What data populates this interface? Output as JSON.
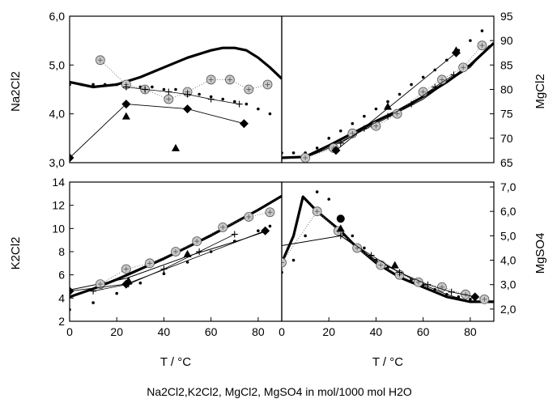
{
  "caption": "Na2Cl2,K2Cl2, MgCl2, MgSO4 in mol/1000 mol H2O",
  "chart_data": [
    {
      "id": "na2cl2",
      "type": "line",
      "ylabel": "Na2Cl2",
      "xlabel": "",
      "xlim": [
        0,
        90
      ],
      "ylim": [
        3.0,
        6.0
      ],
      "xticks": [],
      "yticks": [
        "3,0",
        "4,0",
        "5,0",
        "6,0"
      ],
      "ytick_values": [
        3,
        4,
        5,
        6
      ],
      "series": [
        {
          "kind": "thick",
          "x": [
            0,
            10,
            20,
            30,
            40,
            50,
            60,
            65,
            70,
            75,
            80,
            85,
            90
          ],
          "y": [
            4.65,
            4.55,
            4.6,
            4.75,
            4.95,
            5.15,
            5.3,
            5.35,
            5.35,
            5.3,
            5.15,
            4.95,
            4.72
          ]
        },
        {
          "kind": "dotted",
          "x": [
            0,
            5,
            10,
            15,
            20,
            25,
            30,
            35,
            40,
            45,
            50,
            55,
            60,
            65,
            70,
            75,
            80,
            85
          ],
          "y": [
            4.6,
            4.6,
            4.6,
            4.6,
            4.6,
            4.6,
            4.55,
            4.55,
            4.5,
            4.5,
            4.45,
            4.4,
            4.35,
            4.3,
            4.25,
            4.2,
            4.1,
            4.0
          ]
        },
        {
          "kind": "circle",
          "x": [
            13,
            24,
            32,
            42,
            50,
            60,
            68,
            76,
            84
          ],
          "y": [
            5.1,
            4.6,
            4.5,
            4.3,
            4.45,
            4.7,
            4.7,
            4.5,
            4.6
          ]
        },
        {
          "kind": "plus",
          "x": [
            24,
            32,
            42,
            50,
            60,
            72
          ],
          "y": [
            4.55,
            4.5,
            4.45,
            4.4,
            4.3,
            4.2
          ]
        },
        {
          "kind": "diamond",
          "x": [
            0,
            24,
            50,
            74
          ],
          "y": [
            3.1,
            4.2,
            4.1,
            3.8
          ]
        },
        {
          "kind": "triangle",
          "x": [
            24,
            45
          ],
          "y": [
            3.95,
            3.3
          ]
        }
      ]
    },
    {
      "id": "mgcl2",
      "type": "line",
      "ylabel": "MgCl2",
      "xlabel": "",
      "xlim": [
        0,
        90
      ],
      "ylim": [
        65,
        95
      ],
      "xticks": [],
      "yticks": [
        "65",
        "70",
        "75",
        "80",
        "85",
        "90",
        "95"
      ],
      "ytick_values": [
        65,
        70,
        75,
        80,
        85,
        90,
        95
      ],
      "series": [
        {
          "kind": "thick",
          "x": [
            0,
            10,
            20,
            30,
            40,
            50,
            60,
            70,
            80,
            90
          ],
          "y": [
            66,
            66.2,
            68.5,
            71,
            73.5,
            75.8,
            78.5,
            81.5,
            85,
            89.5
          ]
        },
        {
          "kind": "thin",
          "x": [
            10,
            20,
            30,
            40,
            50,
            60,
            70,
            80,
            88
          ],
          "y": [
            66,
            68,
            70.5,
            73,
            75.5,
            78,
            81.5,
            84.5,
            89
          ]
        },
        {
          "kind": "dotted",
          "x": [
            0,
            5,
            10,
            15,
            20,
            25,
            30,
            35,
            40,
            45,
            50,
            55,
            60,
            65,
            70,
            75,
            80,
            85
          ],
          "y": [
            67,
            67,
            67,
            68,
            70,
            71.5,
            73,
            74.5,
            76,
            77.5,
            79,
            81,
            82.5,
            84,
            86,
            88,
            90,
            92
          ]
        },
        {
          "kind": "circle",
          "x": [
            10,
            22,
            30,
            40,
            49,
            60,
            68,
            77,
            85
          ],
          "y": [
            66,
            68,
            71,
            72.5,
            75,
            79.5,
            82,
            84.5,
            89
          ]
        },
        {
          "kind": "plus",
          "x": [
            25,
            35,
            45,
            55,
            65,
            73
          ],
          "y": [
            69,
            72,
            74.5,
            77,
            80.5,
            83
          ]
        },
        {
          "kind": "diamond",
          "x": [
            23,
            74
          ],
          "y": [
            67.5,
            87.5
          ]
        },
        {
          "kind": "triangle",
          "x": [
            45,
            74
          ],
          "y": [
            76.5,
            88
          ]
        }
      ]
    },
    {
      "id": "k2cl2",
      "type": "line",
      "ylabel": "K2Cl2",
      "xlabel": "T / °C",
      "xlim": [
        0,
        90
      ],
      "ylim": [
        2,
        14
      ],
      "xticks": [
        "0",
        "20",
        "40",
        "60",
        "80"
      ],
      "xtick_values": [
        0,
        20,
        40,
        60,
        80
      ],
      "yticks": [
        "2",
        "4",
        "6",
        "8",
        "10",
        "12",
        "14"
      ],
      "ytick_values": [
        2,
        4,
        6,
        8,
        10,
        12,
        14
      ],
      "series": [
        {
          "kind": "thick",
          "x": [
            0,
            10,
            20,
            30,
            40,
            50,
            60,
            70,
            80,
            90
          ],
          "y": [
            4.1,
            4.8,
            5.6,
            6.5,
            7.4,
            8.4,
            9.4,
            10.5,
            11.6,
            12.8
          ]
        },
        {
          "kind": "thin",
          "x": [
            0,
            24,
            50,
            74,
            84
          ],
          "y": [
            4.7,
            5.7,
            7.6,
            9.1,
            9.8
          ]
        },
        {
          "kind": "dotted",
          "x": [
            0,
            10,
            20,
            30,
            40,
            50,
            60,
            70,
            80,
            85
          ],
          "y": [
            3.0,
            3.6,
            4.4,
            5.3,
            6.1,
            7.1,
            8.0,
            8.9,
            9.8,
            10.2
          ]
        },
        {
          "kind": "circle",
          "x": [
            13,
            24,
            34,
            45,
            54,
            65,
            76,
            85
          ],
          "y": [
            5.2,
            6.5,
            7.0,
            8.0,
            8.9,
            10.1,
            11.0,
            11.4
          ]
        },
        {
          "kind": "plus",
          "x": [
            10,
            25,
            40,
            55,
            70
          ],
          "y": [
            4.6,
            5.2,
            6.5,
            8.0,
            9.5
          ]
        },
        {
          "kind": "diamond",
          "x": [
            0,
            24,
            83
          ],
          "y": [
            4.6,
            5.2,
            9.8
          ]
        },
        {
          "kind": "triangle",
          "x": [
            25,
            50
          ],
          "y": [
            5.5,
            7.8
          ]
        }
      ]
    },
    {
      "id": "mgso4",
      "type": "line",
      "ylabel": "MgSO4",
      "xlabel": "T / °C",
      "xlim": [
        0,
        90
      ],
      "ylim": [
        1.5,
        7.2
      ],
      "xticks": [
        "0",
        "20",
        "40",
        "60",
        "80"
      ],
      "xtick_values": [
        0,
        20,
        40,
        60,
        80
      ],
      "yticks": [
        "2,0",
        "3,0",
        "4,0",
        "5,0",
        "6,0",
        "7,0"
      ],
      "ytick_values": [
        2,
        3,
        4,
        5,
        6,
        7
      ],
      "series": [
        {
          "kind": "thick",
          "x": [
            0,
            5,
            9,
            15,
            20,
            25,
            30,
            40,
            50,
            60,
            70,
            80,
            90
          ],
          "y": [
            3.9,
            5.0,
            6.6,
            6.0,
            5.6,
            5.2,
            4.7,
            3.9,
            3.3,
            2.9,
            2.5,
            2.3,
            2.3
          ]
        },
        {
          "kind": "thin",
          "x": [
            0,
            25,
            40,
            50,
            60,
            70,
            80,
            88
          ],
          "y": [
            4.6,
            5.0,
            4.0,
            3.5,
            3.0,
            2.6,
            2.3,
            2.3
          ]
        },
        {
          "kind": "dotted",
          "x": [
            0,
            5,
            10,
            15,
            20,
            25,
            30,
            35,
            40,
            45,
            50,
            55,
            60,
            65,
            70,
            75,
            80,
            85
          ],
          "y": [
            3.5,
            4.0,
            5.0,
            6.8,
            6.5,
            5.7,
            5.0,
            4.5,
            4.0,
            3.7,
            3.4,
            3.2,
            3.0,
            2.8,
            2.6,
            2.5,
            2.4,
            2.4
          ]
        },
        {
          "kind": "circle",
          "x": [
            0,
            15,
            24,
            32,
            42,
            50,
            58,
            68,
            78,
            86
          ],
          "y": [
            3.9,
            6.0,
            5.2,
            4.5,
            3.8,
            3.4,
            3.1,
            2.9,
            2.6,
            2.4
          ]
        },
        {
          "kind": "plus",
          "x": [
            25,
            38,
            50,
            62,
            72,
            82
          ],
          "y": [
            5.0,
            4.2,
            3.5,
            3.0,
            2.7,
            2.5
          ]
        },
        {
          "kind": "dot",
          "x": [
            25
          ],
          "y": [
            5.7
          ]
        },
        {
          "kind": "diamond",
          "x": [
            82
          ],
          "y": [
            2.5
          ]
        },
        {
          "kind": "triangle",
          "x": [
            25,
            48
          ],
          "y": [
            5.3,
            3.8
          ]
        }
      ]
    }
  ]
}
